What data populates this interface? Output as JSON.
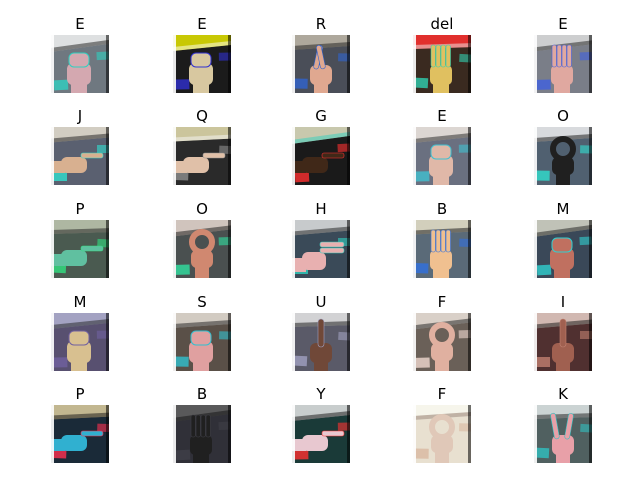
{
  "figure": {
    "items": [
      {
        "label": "E",
        "palette": [
          "#6f7880",
          "#f2f2f2",
          "#d4a8b0",
          "#2fd0c0",
          "#1a1a1a"
        ],
        "pose": "fist"
      },
      {
        "label": "E",
        "palette": [
          "#1b1b1b",
          "#e6e600",
          "#d8c8a0",
          "#3030d0",
          "#ffffff"
        ],
        "pose": "fist"
      },
      {
        "label": "R",
        "palette": [
          "#4a4e58",
          "#c0b8a8",
          "#e0a890",
          "#2f64d0",
          "#1a1a1a"
        ],
        "pose": "cross"
      },
      {
        "label": "del",
        "palette": [
          "#3a2a20",
          "#ff3030",
          "#e0c060",
          "#30d0b0",
          "#f0f0f0"
        ],
        "pose": "open"
      },
      {
        "label": "E",
        "palette": [
          "#7a7e88",
          "#dcdcdc",
          "#e0a8a0",
          "#4060e0",
          "#1a1a1a"
        ],
        "pose": "open"
      },
      {
        "label": "J",
        "palette": [
          "#5a6070",
          "#e8e0d0",
          "#d8b090",
          "#30e0d0",
          "#1a1a1a"
        ],
        "pose": "point-side"
      },
      {
        "label": "Q",
        "palette": [
          "#2a2a2a",
          "#e8e0b0",
          "#e0c0a8",
          "#909090",
          "#f8f8f8"
        ],
        "pose": "point-side"
      },
      {
        "label": "G",
        "palette": [
          "#1a1a1a",
          "#e8e8c8",
          "#402818",
          "#ff3030",
          "#30d0c0"
        ],
        "pose": "point-side"
      },
      {
        "label": "E",
        "palette": [
          "#6a7080",
          "#f0e8e0",
          "#e0b8a8",
          "#40c0d0",
          "#202020"
        ],
        "pose": "fist"
      },
      {
        "label": "O",
        "palette": [
          "#506070",
          "#f0f0f0",
          "#202020",
          "#30e0d0",
          "#101010"
        ],
        "pose": "circle"
      },
      {
        "label": "P",
        "palette": [
          "#4a5a50",
          "#c0c8b0",
          "#60c0a0",
          "#30e080",
          "#1a1a1a"
        ],
        "pose": "point-side"
      },
      {
        "label": "O",
        "palette": [
          "#4a5050",
          "#e8d8d0",
          "#d08870",
          "#30e0a0",
          "#101010"
        ],
        "pose": "circle"
      },
      {
        "label": "H",
        "palette": [
          "#3a4a58",
          "#e0e0e0",
          "#e8b0b0",
          "#30d0c0",
          "#1a1a1a"
        ],
        "pose": "two-side"
      },
      {
        "label": "B",
        "palette": [
          "#5a6a78",
          "#e8e0c8",
          "#f0c090",
          "#3070e0",
          "#101010"
        ],
        "pose": "open"
      },
      {
        "label": "M",
        "palette": [
          "#3a4858",
          "#d8d8c8",
          "#c07060",
          "#30d0d0",
          "#1a1a1a"
        ],
        "pose": "fist"
      },
      {
        "label": "M",
        "palette": [
          "#585070",
          "#b0b0d0",
          "#d8c090",
          "#7060a0",
          "#202020"
        ],
        "pose": "fist"
      },
      {
        "label": "S",
        "palette": [
          "#5a5048",
          "#e8e0d8",
          "#e0a0a0",
          "#30c0d0",
          "#1a1a1a"
        ],
        "pose": "fist"
      },
      {
        "label": "U",
        "palette": [
          "#5a5a68",
          "#e8e8e8",
          "#704838",
          "#a0a0c0",
          "#101010"
        ],
        "pose": "up"
      },
      {
        "label": "F",
        "palette": [
          "#6a6058",
          "#ece4dc",
          "#e0b0a0",
          "#f0d8d0",
          "#1a1a1a"
        ],
        "pose": "circle"
      },
      {
        "label": "I",
        "palette": [
          "#503030",
          "#e8d0c8",
          "#a06050",
          "#c08070",
          "#101010"
        ],
        "pose": "up"
      },
      {
        "label": "P",
        "palette": [
          "#1a2a38",
          "#e0d0a0",
          "#30b0d0",
          "#ff3050",
          "#101010"
        ],
        "pose": "point-side"
      },
      {
        "label": "B",
        "palette": [
          "#303038",
          "#606060",
          "#202020",
          "#404048",
          "#101010"
        ],
        "pose": "open"
      },
      {
        "label": "Y",
        "palette": [
          "#1a3a38",
          "#e8e8e8",
          "#e8c8d0",
          "#ff3030",
          "#101010"
        ],
        "pose": "point-side"
      },
      {
        "label": "F",
        "palette": [
          "#e8e0d0",
          "#f8f8f0",
          "#e0c8b8",
          "#d8b8a0",
          "#8a7060"
        ],
        "pose": "circle"
      },
      {
        "label": "K",
        "palette": [
          "#506060",
          "#e0e8e8",
          "#e8a0a8",
          "#30c0c0",
          "#1a1a1a"
        ],
        "pose": "two-up"
      }
    ]
  }
}
